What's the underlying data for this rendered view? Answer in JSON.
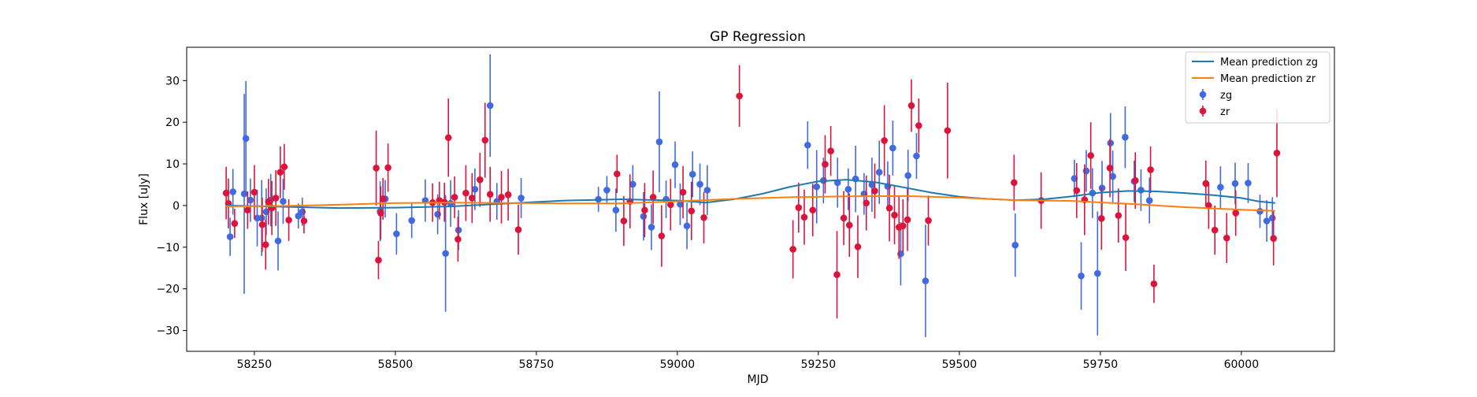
{
  "chart_data": {
    "type": "scatter",
    "title": "GP Regression",
    "xlabel": "MJD",
    "ylabel": "Flux [uJy]",
    "xlim": [
      58130,
      60165
    ],
    "ylim": [
      -35,
      38
    ],
    "x_ticks": [
      58250,
      58500,
      58750,
      59000,
      59250,
      59500,
      59750,
      60000
    ],
    "y_ticks": [
      -30,
      -20,
      -10,
      0,
      10,
      20,
      30
    ],
    "grid": false,
    "legend_position": "top-right",
    "series": [
      {
        "name": "zg",
        "kind": "errorbar",
        "color": "#4169e1",
        "x": [
          58207,
          58212,
          58232,
          58235,
          58243,
          58255,
          58263,
          58271,
          58279,
          58292,
          58301,
          58328,
          58335,
          58473,
          58482,
          58502,
          58529,
          58553,
          58575,
          58589,
          58598,
          58612,
          58641,
          58668,
          58680,
          58723,
          58860,
          58875,
          58891,
          58921,
          58940,
          58954,
          58968,
          58980,
          58996,
          59005,
          59017,
          59027,
          59040,
          59053,
          59231,
          59247,
          59259,
          59284,
          59303,
          59316,
          59331,
          59345,
          59358,
          59373,
          59382,
          59396,
          59409,
          59424,
          59440,
          59599,
          59704,
          59716,
          59725,
          59736,
          59745,
          59753,
          59768,
          59772,
          59794,
          59810,
          59822,
          59837,
          59963,
          59989,
          60012,
          60033,
          60045,
          60055
        ],
        "y": [
          -7.5,
          3.3,
          2.8,
          16.1,
          1.3,
          -3,
          -3,
          -1.5,
          1.3,
          -8.5,
          1.0,
          -2.5,
          -1.5,
          -1.4,
          1.6,
          -6.8,
          -3.6,
          1.2,
          -2.1,
          -11.5,
          0.5,
          -5.9,
          3.9,
          24.0,
          1.0,
          1.8,
          1.5,
          3.7,
          -1.1,
          5.1,
          -2.6,
          -5.2,
          15.3,
          1.5,
          9.8,
          0.3,
          -4.9,
          7.5,
          5.1,
          3.7,
          14.5,
          4.5,
          6.0,
          5.5,
          3.9,
          6.4,
          2.8,
          5.0,
          8.0,
          4.6,
          13.8,
          -11.6,
          7.2,
          11.9,
          -18.1,
          -9.5,
          6.5,
          -16.9,
          8.3,
          3.0,
          -16.3,
          4.2,
          15.0,
          7.0,
          16.4,
          5.8,
          3.7,
          1.2,
          4.4,
          5.3,
          5.4,
          -1.4,
          -3.7,
          -3.0
        ],
        "err": [
          4.6,
          5.5,
          24,
          13.8,
          5.2,
          6.8,
          9.1,
          5.6,
          6.3,
          7.1,
          5.4,
          3,
          3.4,
          7.2,
          4.5,
          5,
          4.2,
          5.1,
          4.8,
          14,
          5.6,
          4.8,
          5,
          12.3,
          4.4,
          4.8,
          3,
          3.4,
          5.2,
          4.6,
          5.8,
          5.5,
          12.1,
          4.5,
          5.6,
          5,
          5.6,
          5.5,
          5,
          6,
          5.7,
          8.8,
          5.5,
          6,
          5,
          8,
          5,
          6.5,
          7.6,
          6,
          6.6,
          7.6,
          6.2,
          5.5,
          13.5,
          7.6,
          4.5,
          8.1,
          5,
          6,
          14.9,
          6.5,
          7.2,
          6.2,
          7.4,
          5,
          5,
          5.5,
          5,
          5,
          4.8,
          4,
          5,
          5
        ]
      },
      {
        "name": "zr",
        "kind": "errorbar",
        "color": "#dc143c",
        "x": [
          58200,
          58204,
          58215,
          58238,
          58250,
          58264,
          58270,
          58275,
          58281,
          58288,
          58296,
          58303,
          58311,
          58338,
          58466,
          58470,
          58474,
          58478,
          58487,
          58566,
          58578,
          58587,
          58594,
          58605,
          58611,
          58625,
          58636,
          58650,
          58659,
          58668,
          58688,
          58700,
          58718,
          58893,
          58905,
          58916,
          58942,
          58957,
          58972,
          58988,
          59010,
          59025,
          59047,
          59110,
          59205,
          59215,
          59225,
          59240,
          59262,
          59272,
          59283,
          59295,
          59305,
          59320,
          59335,
          59350,
          59367,
          59376,
          59385,
          59393,
          59400,
          59408,
          59415,
          59428,
          59445,
          59479,
          59597,
          59645,
          59708,
          59722,
          59733,
          59752,
          59767,
          59782,
          59795,
          59812,
          59839,
          59845,
          59937,
          59942,
          59953,
          59974,
          59990,
          60057,
          60063
        ],
        "y": [
          3.0,
          0.5,
          -4.3,
          -1.1,
          3.2,
          -4.6,
          -9.4,
          0.9,
          -0.6,
          1.8,
          8.0,
          9.3,
          -3.5,
          -3.7,
          9.0,
          -13.1,
          -1.8,
          1.6,
          9.1,
          0.7,
          1.2,
          0.8,
          16.3,
          2.0,
          -8.1,
          3.0,
          1.8,
          6.2,
          15.7,
          2.7,
          2.0,
          2.6,
          -5.8,
          7.6,
          -3.7,
          1.0,
          -1.1,
          2.0,
          -7.3,
          0.2,
          3.2,
          -1.3,
          -2.9,
          26.3,
          -10.5,
          -0.5,
          -2.8,
          -1.1,
          9.9,
          13.1,
          -16.6,
          -3.0,
          -4.7,
          -9.9,
          0.6,
          3.5,
          15.6,
          -0.6,
          -2.3,
          -5.2,
          -4.9,
          -3.4,
          24.0,
          19.2,
          -3.6,
          18.0,
          5.5,
          1.2,
          3.6,
          1.4,
          12.0,
          -3.1,
          9.0,
          -2.4,
          -7.7,
          6.0,
          8.6,
          -18.8,
          5.3,
          0,
          -5.9,
          -7.8,
          -1.8,
          -7.9,
          12.6
        ],
        "err": [
          6.3,
          6,
          3.5,
          4.5,
          6.5,
          6.5,
          6,
          5.5,
          6.5,
          6.7,
          6.2,
          5.5,
          5,
          3,
          9,
          4.6,
          6.4,
          5,
          5.8,
          4.6,
          4.5,
          4.7,
          9.4,
          5,
          5.4,
          6.7,
          6,
          6.5,
          9,
          6.6,
          6.3,
          6.2,
          6,
          4.6,
          6,
          6.5,
          6.5,
          6.4,
          7.4,
          6.2,
          6.3,
          7,
          6.2,
          7.4,
          7,
          6,
          6.6,
          6.3,
          7,
          6,
          10.5,
          6.5,
          7.6,
          7.5,
          6.6,
          6.6,
          8.5,
          8,
          7,
          7.6,
          6.4,
          7.5,
          6.3,
          6.5,
          6,
          11.5,
          6.7,
          6.8,
          6.6,
          8.5,
          8,
          7.5,
          7,
          6.5,
          8,
          6.8,
          5.6,
          4.6,
          5.5,
          5.6,
          5.9,
          6,
          5.5,
          6.5,
          10.6
        ]
      },
      {
        "name": "Mean prediction zg",
        "kind": "line",
        "color": "#1f77b4",
        "x": [
          58200,
          58300,
          58400,
          58500,
          58600,
          58700,
          58800,
          58900,
          59000,
          59050,
          59100,
          59150,
          59200,
          59250,
          59300,
          59350,
          59400,
          59450,
          59500,
          59550,
          59600,
          59650,
          59700,
          59750,
          59800,
          59850,
          59900,
          59950,
          60000,
          60030,
          60060
        ],
        "y": [
          0,
          -0.3,
          -0.6,
          -0.5,
          -0.2,
          0.5,
          1.2,
          1.5,
          1.2,
          0.7,
          1.5,
          2.8,
          4.5,
          5.8,
          6.2,
          5.6,
          4.4,
          3.1,
          2.1,
          1.6,
          1.3,
          1.5,
          2.2,
          3.1,
          3.5,
          3.4,
          3.0,
          2.5,
          1.8,
          1.0,
          0.6
        ]
      },
      {
        "name": "Mean prediction zr",
        "kind": "line",
        "color": "#ff7f0e",
        "x": [
          58200,
          58300,
          58400,
          58500,
          58600,
          58700,
          58800,
          58900,
          59000,
          59100,
          59200,
          59300,
          59400,
          59500,
          59600,
          59700,
          59800,
          59900,
          60000,
          60060
        ],
        "y": [
          -0.2,
          -0.1,
          0.2,
          0.6,
          0.7,
          0.6,
          0.5,
          0.5,
          1.0,
          1.6,
          2.0,
          2.2,
          2.3,
          1.9,
          1.3,
          1.1,
          0.4,
          -0.4,
          -1.0,
          -1.3
        ]
      }
    ],
    "legend": [
      {
        "label": "Mean prediction zg",
        "marker": "line",
        "color": "#1f77b4"
      },
      {
        "label": "Mean prediction zr",
        "marker": "line",
        "color": "#ff7f0e"
      },
      {
        "label": "zg",
        "marker": "errorbar",
        "color": "#4169e1"
      },
      {
        "label": "zr",
        "marker": "errorbar",
        "color": "#dc143c"
      }
    ]
  }
}
